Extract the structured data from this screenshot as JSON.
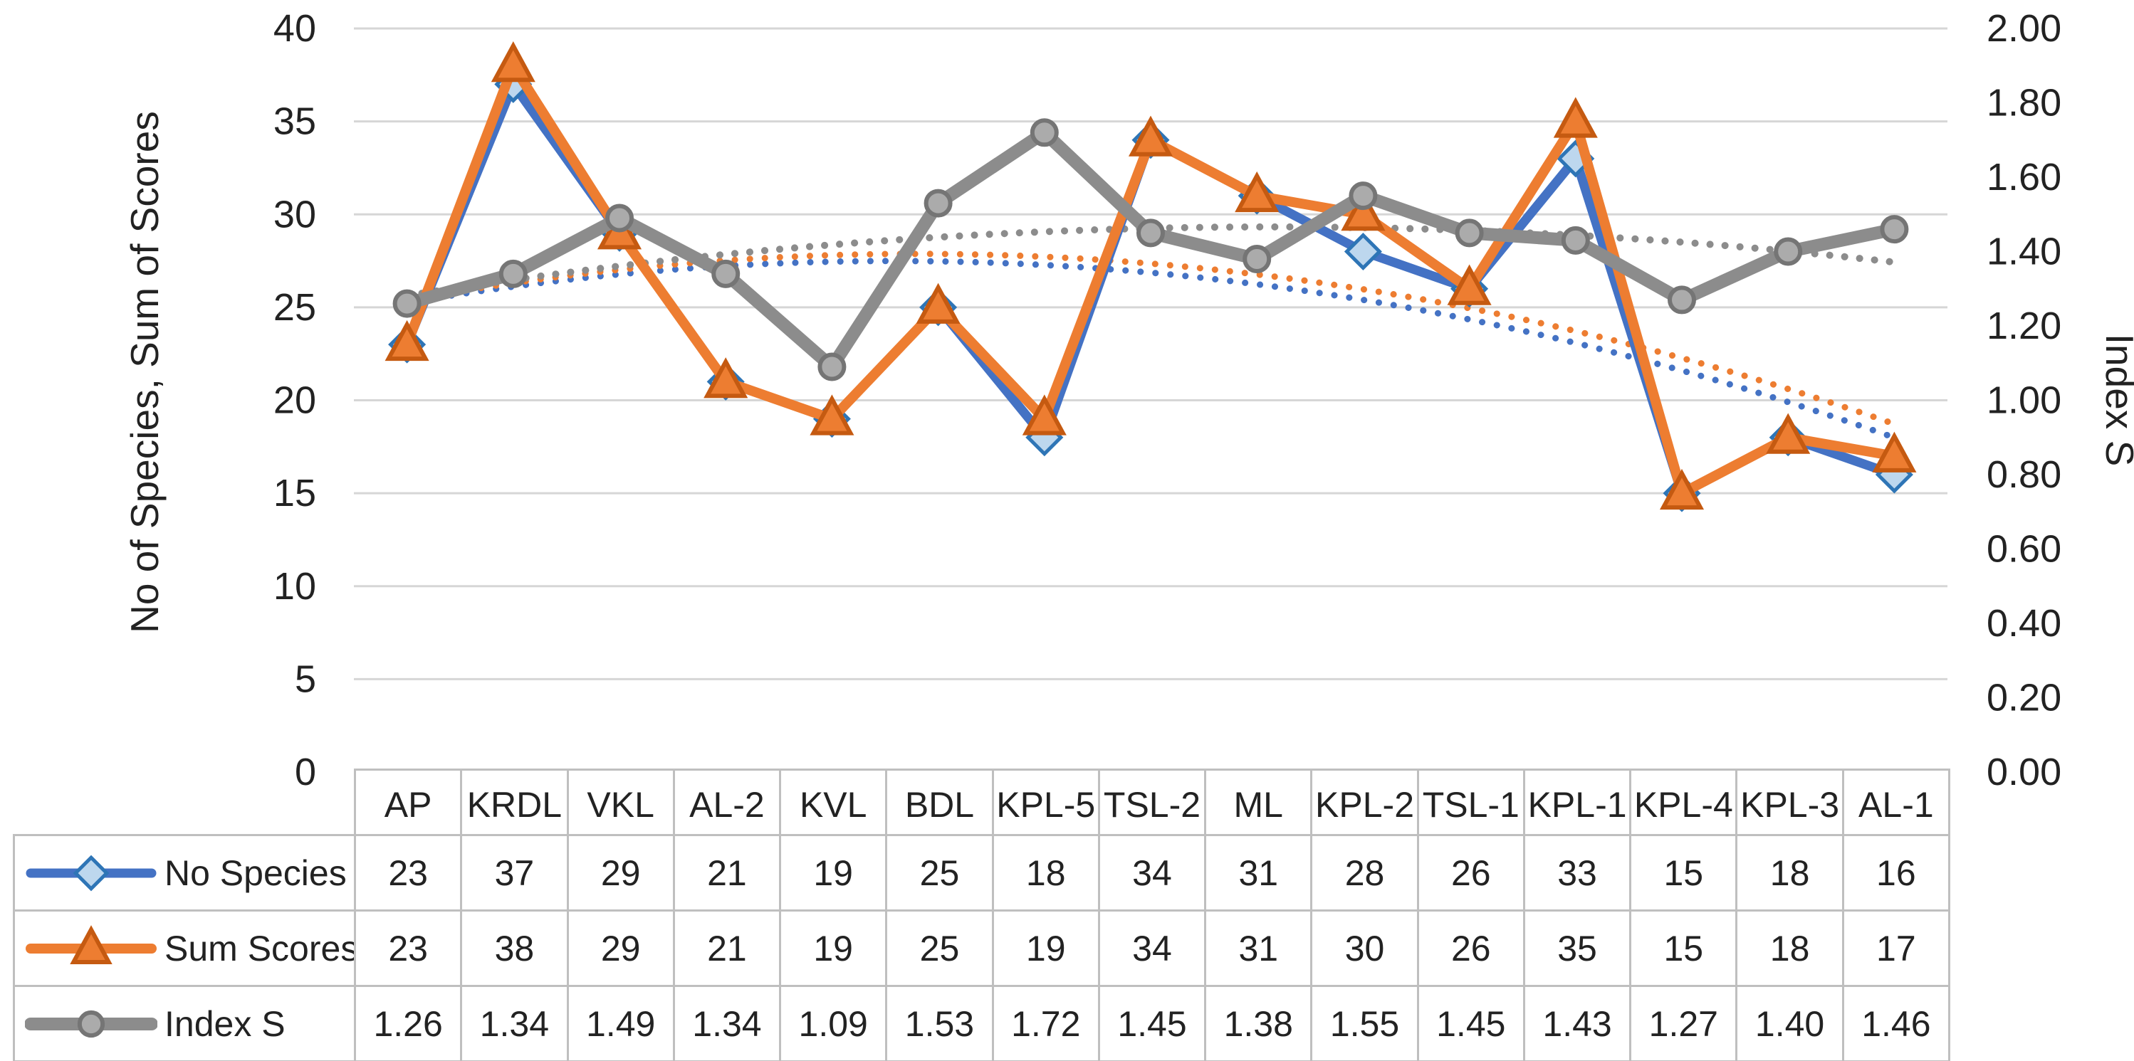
{
  "chart_data": {
    "type": "line",
    "title": "",
    "categories": [
      "AP",
      "KRDL",
      "VKL",
      "AL-2",
      "KVL",
      "BDL",
      "KPL-5",
      "TSL-2",
      "ML",
      "KPL-2",
      "TSL-1",
      "KPL-1",
      "KPL-4",
      "KPL-3",
      "AL-1"
    ],
    "series": [
      {
        "name": "No Species",
        "axis": "left",
        "marker": "diamond",
        "decimals": 0,
        "line_color": "#4472C4",
        "marker_fill": "#BDD7EE",
        "marker_stroke": "#2E75B6",
        "line_width": 13,
        "values": [
          23,
          37,
          29,
          21,
          19,
          25,
          18,
          34,
          31,
          28,
          26,
          33,
          15,
          18,
          16
        ],
        "trendline": "polynomial-order-2-dotted"
      },
      {
        "name": "Sum Scores",
        "axis": "left",
        "marker": "triangle",
        "decimals": 0,
        "line_color": "#ED7D31",
        "marker_fill": "#ED7D31",
        "marker_stroke": "#C55A11",
        "line_width": 14,
        "values": [
          23,
          38,
          29,
          21,
          19,
          25,
          19,
          34,
          31,
          30,
          26,
          35,
          15,
          18,
          17
        ],
        "trendline": "polynomial-order-2-dotted"
      },
      {
        "name": "Index S",
        "axis": "right",
        "marker": "circle",
        "decimals": 2,
        "line_color": "#8C8C8C",
        "marker_fill": "#ABABAB",
        "marker_stroke": "#757575",
        "line_width": 18,
        "values": [
          1.26,
          1.34,
          1.49,
          1.34,
          1.09,
          1.53,
          1.72,
          1.45,
          1.38,
          1.55,
          1.45,
          1.43,
          1.27,
          1.4,
          1.46
        ],
        "trendline": "polynomial-order-2-dotted"
      }
    ],
    "left_axis": {
      "title": "No of Species, Sum of Scores",
      "min": 0,
      "max": 40,
      "step": 5,
      "tick_labels": [
        "0",
        "5",
        "10",
        "15",
        "20",
        "25",
        "30",
        "35",
        "40"
      ]
    },
    "right_axis": {
      "title": "Index S",
      "min": 0,
      "max": 2,
      "step": 0.2,
      "tick_labels": [
        "0.00",
        "0.20",
        "0.40",
        "0.60",
        "0.80",
        "1.00",
        "1.20",
        "1.40",
        "1.60",
        "1.80",
        "2.00"
      ]
    },
    "grid": true,
    "gridline_color": "#D6D6D6",
    "table_border_color": "#BFBFBF",
    "legend_position": "data-table-left",
    "data_table_shown": true
  }
}
